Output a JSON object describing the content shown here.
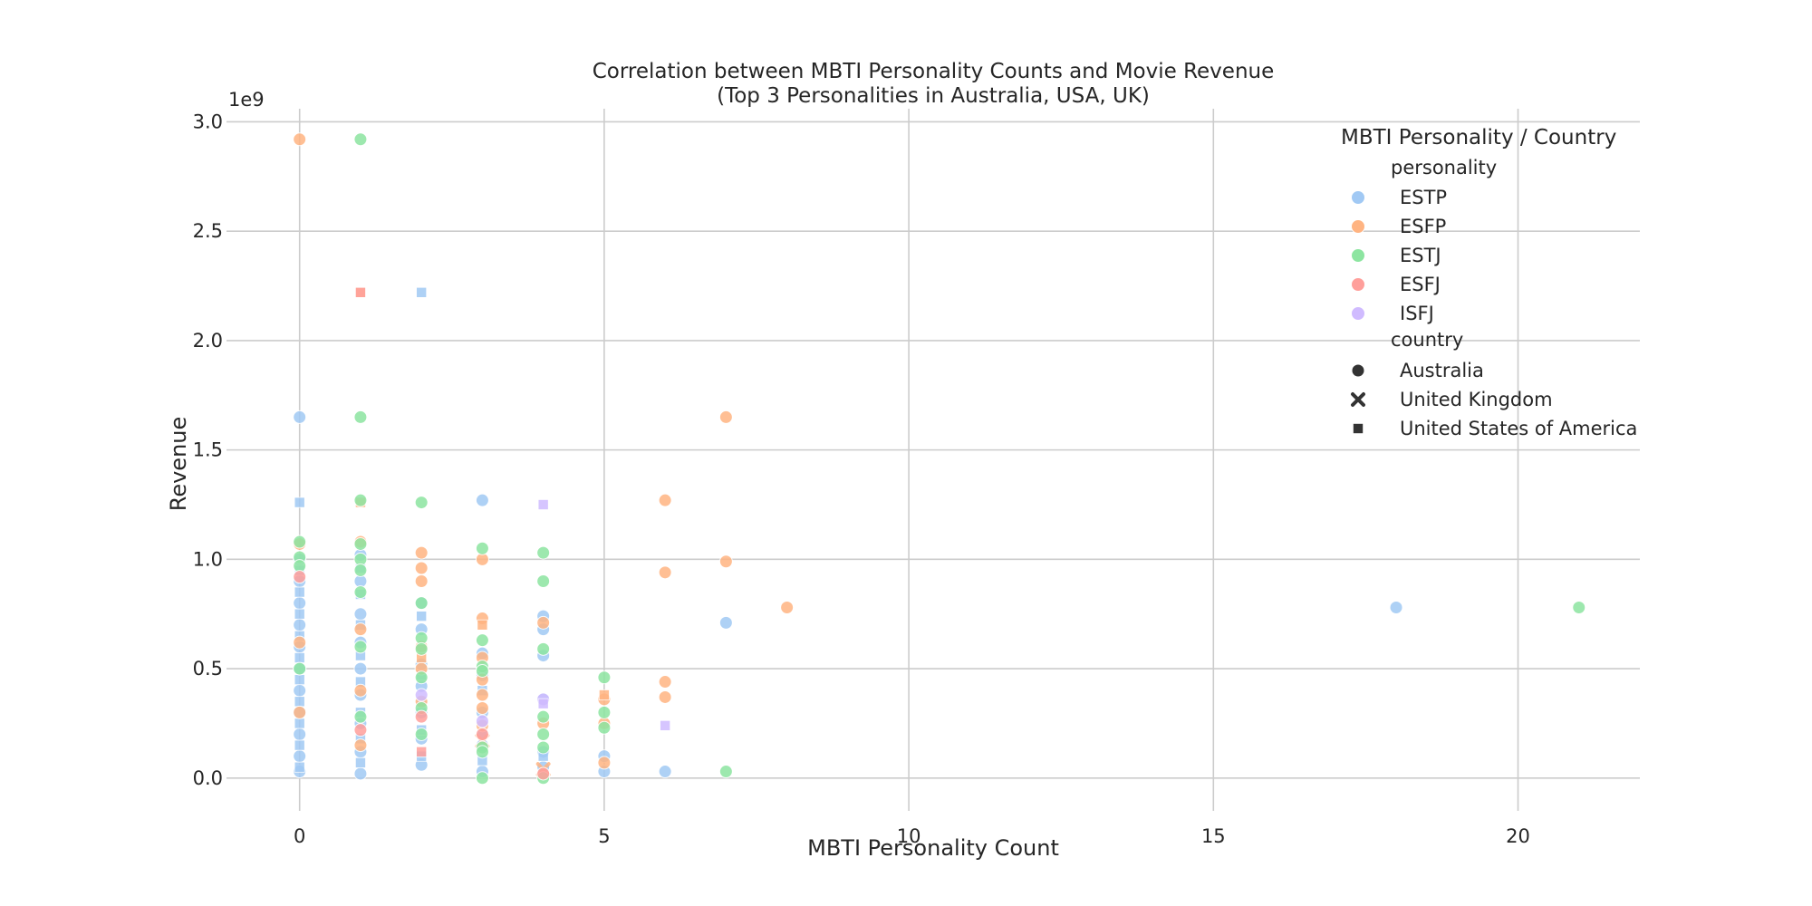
{
  "chart_data": {
    "type": "scatter",
    "title": "Correlation between MBTI Personality Counts and Movie Revenue",
    "subtitle": "(Top 3 Personalities in Australia, USA, UK)",
    "xlabel": "MBTI Personality Count",
    "ylabel": "Revenue",
    "y_offset_label": "1e9",
    "xlim": [
      -1.2,
      22
    ],
    "ylim": [
      -0.15,
      3.06
    ],
    "x_ticks": [
      0,
      5,
      10,
      15,
      20
    ],
    "x_tick_labels": [
      "0",
      "5",
      "10",
      "15",
      "20"
    ],
    "y_ticks": [
      0,
      0.5,
      1.0,
      1.5,
      2.0,
      2.5,
      3.0
    ],
    "y_tick_labels": [
      "0.0",
      "0.5",
      "1.0",
      "1.5",
      "2.0",
      "2.5",
      "3.0"
    ],
    "y_scale_note": "values in units of 1e9",
    "grid": true,
    "legend": {
      "title": "MBTI Personality / Country",
      "placement": "top-right",
      "hue_title": "personality",
      "style_title": "country",
      "personalities": [
        {
          "name": "ESTP",
          "color": "#a1c9f4"
        },
        {
          "name": "ESFP",
          "color": "#ffb482"
        },
        {
          "name": "ESTJ",
          "color": "#8de5a1"
        },
        {
          "name": "ESFJ",
          "color": "#ff9f9b"
        },
        {
          "name": "ISFJ",
          "color": "#d0bbff"
        }
      ],
      "countries": [
        {
          "name": "Australia",
          "marker": "circle"
        },
        {
          "name": "United Kingdom",
          "marker": "x"
        },
        {
          "name": "United States of America",
          "marker": "square"
        }
      ]
    },
    "series": [
      {
        "personality": "ESTP",
        "country": "Australia",
        "points": [
          [
            0,
            1.65
          ],
          [
            0,
            1.0
          ],
          [
            0,
            0.9
          ],
          [
            0,
            0.8
          ],
          [
            0,
            0.7
          ],
          [
            0,
            0.6
          ],
          [
            0,
            0.5
          ],
          [
            0,
            0.4
          ],
          [
            0,
            0.3
          ],
          [
            0,
            0.2
          ],
          [
            0,
            0.1
          ],
          [
            0,
            0.03
          ],
          [
            1,
            1.02
          ],
          [
            1,
            0.9
          ],
          [
            1,
            0.75
          ],
          [
            1,
            0.62
          ],
          [
            1,
            0.5
          ],
          [
            1,
            0.38
          ],
          [
            1,
            0.25
          ],
          [
            1,
            0.12
          ],
          [
            1,
            0.02
          ],
          [
            2,
            0.8
          ],
          [
            2,
            0.68
          ],
          [
            2,
            0.52
          ],
          [
            2,
            0.42
          ],
          [
            2,
            0.3
          ],
          [
            2,
            0.18
          ],
          [
            2,
            0.06
          ],
          [
            3,
            1.27
          ],
          [
            3,
            0.57
          ],
          [
            3,
            0.47
          ],
          [
            3,
            0.3
          ],
          [
            3,
            0.15
          ],
          [
            3,
            0.03
          ],
          [
            4,
            0.74
          ],
          [
            4,
            0.68
          ],
          [
            4,
            0.56
          ],
          [
            4,
            0.36
          ],
          [
            4,
            0.12
          ],
          [
            4,
            0.05
          ],
          [
            5,
            0.1
          ],
          [
            5,
            0.03
          ],
          [
            6,
            0.03
          ],
          [
            7,
            0.71
          ],
          [
            18,
            0.78
          ]
        ]
      },
      {
        "personality": "ESTP",
        "country": "United States of America",
        "points": [
          [
            0,
            1.26
          ],
          [
            0,
            0.95
          ],
          [
            0,
            0.85
          ],
          [
            0,
            0.75
          ],
          [
            0,
            0.65
          ],
          [
            0,
            0.55
          ],
          [
            0,
            0.45
          ],
          [
            0,
            0.35
          ],
          [
            0,
            0.25
          ],
          [
            0,
            0.15
          ],
          [
            0,
            0.05
          ],
          [
            1,
            0.96
          ],
          [
            1,
            0.84
          ],
          [
            1,
            0.7
          ],
          [
            1,
            0.56
          ],
          [
            1,
            0.44
          ],
          [
            1,
            0.3
          ],
          [
            1,
            0.18
          ],
          [
            1,
            0.07
          ],
          [
            2,
            2.22
          ],
          [
            2,
            0.74
          ],
          [
            2,
            0.6
          ],
          [
            2,
            0.47
          ],
          [
            2,
            0.35
          ],
          [
            2,
            0.22
          ],
          [
            2,
            0.1
          ],
          [
            3,
            0.4
          ],
          [
            3,
            0.2
          ],
          [
            3,
            0.08
          ],
          [
            4,
            0.1
          ]
        ]
      },
      {
        "personality": "ESFP",
        "country": "Australia",
        "points": [
          [
            0,
            2.92
          ],
          [
            0,
            1.07
          ],
          [
            0,
            0.62
          ],
          [
            0,
            0.3
          ],
          [
            1,
            1.08
          ],
          [
            1,
            0.68
          ],
          [
            1,
            0.4
          ],
          [
            1,
            0.15
          ],
          [
            2,
            1.03
          ],
          [
            2,
            0.96
          ],
          [
            2,
            0.9
          ],
          [
            2,
            0.6
          ],
          [
            2,
            0.5
          ],
          [
            2,
            0.35
          ],
          [
            3,
            1.0
          ],
          [
            3,
            0.73
          ],
          [
            3,
            0.55
          ],
          [
            3,
            0.45
          ],
          [
            3,
            0.38
          ],
          [
            3,
            0.32
          ],
          [
            3,
            0.24
          ],
          [
            4,
            0.71
          ],
          [
            4,
            0.25
          ],
          [
            5,
            0.36
          ],
          [
            5,
            0.25
          ],
          [
            5,
            0.07
          ],
          [
            6,
            1.27
          ],
          [
            6,
            0.94
          ],
          [
            6,
            0.44
          ],
          [
            6,
            0.37
          ],
          [
            7,
            1.65
          ],
          [
            7,
            0.99
          ],
          [
            8,
            0.78
          ]
        ]
      },
      {
        "personality": "ESFP",
        "country": "United Kingdom",
        "points": [
          [
            4,
            0.04
          ],
          [
            3,
            0.17
          ]
        ]
      },
      {
        "personality": "ESFP",
        "country": "United States of America",
        "points": [
          [
            1,
            1.26
          ],
          [
            1,
            2.22
          ],
          [
            2,
            0.55
          ],
          [
            3,
            0.7
          ],
          [
            5,
            0.38
          ]
        ]
      },
      {
        "personality": "ESTJ",
        "country": "Australia",
        "points": [
          [
            0,
            1.08
          ],
          [
            0,
            1.01
          ],
          [
            0,
            0.97
          ],
          [
            0,
            0.5
          ],
          [
            1,
            2.92
          ],
          [
            1,
            1.65
          ],
          [
            1,
            1.27
          ],
          [
            1,
            1.07
          ],
          [
            1,
            1.0
          ],
          [
            1,
            0.95
          ],
          [
            1,
            0.85
          ],
          [
            1,
            0.6
          ],
          [
            1,
            0.28
          ],
          [
            2,
            1.26
          ],
          [
            2,
            0.8
          ],
          [
            2,
            0.64
          ],
          [
            2,
            0.59
          ],
          [
            2,
            0.46
          ],
          [
            2,
            0.32
          ],
          [
            2,
            0.2
          ],
          [
            3,
            1.05
          ],
          [
            3,
            0.63
          ],
          [
            3,
            0.51
          ],
          [
            3,
            0.49
          ],
          [
            3,
            0.14
          ],
          [
            3,
            0.12
          ],
          [
            3,
            0.0
          ],
          [
            4,
            1.03
          ],
          [
            4,
            0.9
          ],
          [
            4,
            0.59
          ],
          [
            4,
            0.28
          ],
          [
            4,
            0.2
          ],
          [
            4,
            0.14
          ],
          [
            4,
            0.0
          ],
          [
            5,
            0.46
          ],
          [
            5,
            0.3
          ],
          [
            5,
            0.23
          ],
          [
            7,
            0.03
          ],
          [
            21,
            0.78
          ]
        ]
      },
      {
        "personality": "ESFJ",
        "country": "Australia",
        "points": [
          [
            0,
            0.92
          ],
          [
            1,
            0.22
          ],
          [
            2,
            0.28
          ],
          [
            3,
            0.2
          ],
          [
            4,
            0.02
          ]
        ]
      },
      {
        "personality": "ESFJ",
        "country": "United States of America",
        "points": [
          [
            1,
            2.22
          ],
          [
            2,
            0.12
          ]
        ]
      },
      {
        "personality": "ISFJ",
        "country": "Australia",
        "points": [
          [
            2,
            0.38
          ],
          [
            3,
            0.26
          ],
          [
            4,
            0.36
          ]
        ]
      },
      {
        "personality": "ISFJ",
        "country": "United States of America",
        "points": [
          [
            4,
            1.25
          ],
          [
            6,
            0.24
          ],
          [
            4,
            0.34
          ]
        ]
      }
    ]
  }
}
